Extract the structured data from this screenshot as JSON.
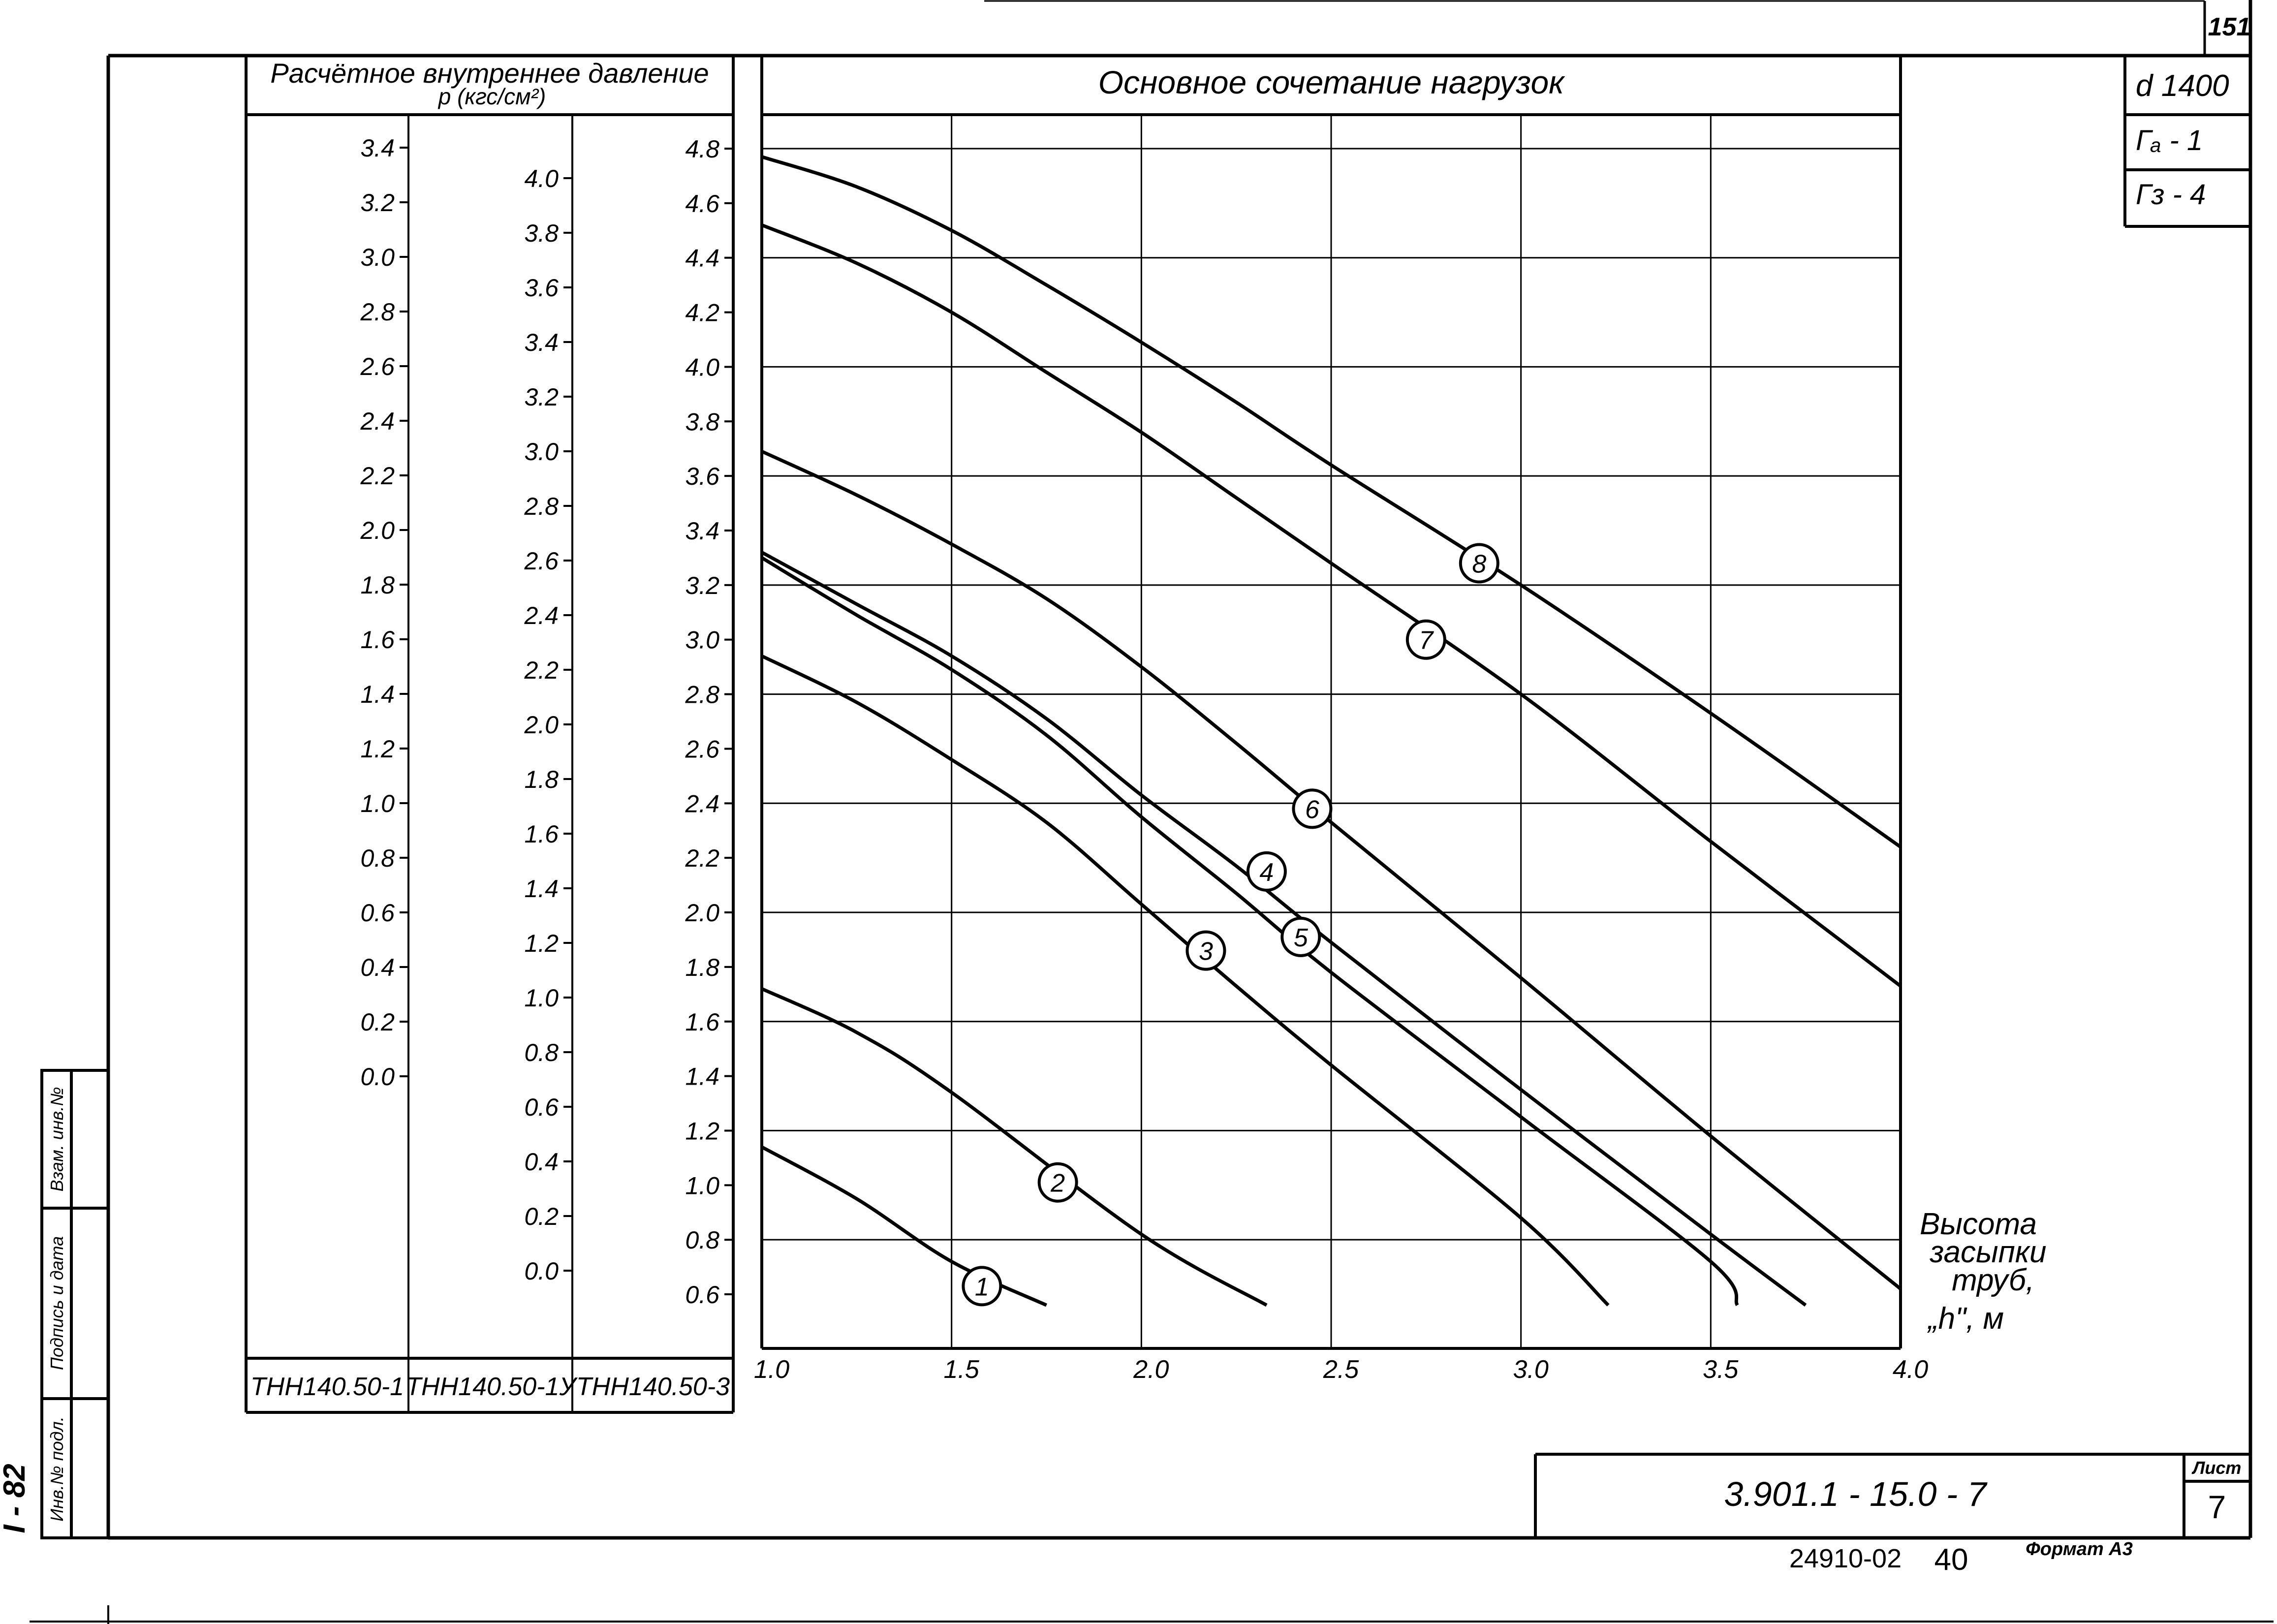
{
  "sheet": {
    "sheet_top_number": "151",
    "stamps": [
      "d 1400",
      "Гₐ - 1",
      "Гз - 4"
    ],
    "document_code": "3.901.1 - 15.0 - 7",
    "sheet_label": "Лист",
    "sheet_number": "7",
    "bottom_code": "24910-02",
    "bottom_number": "40",
    "format_label": "Формат А3",
    "left_margin_code": "I - 82",
    "side_stamp_labels": [
      "Инв.№ подл.",
      "Подпись и дата",
      "Взам. инв.№"
    ]
  },
  "pressure_scales": {
    "header_line1": "Расчётное внутреннее давление",
    "header_line2": "p (кгс/см²)",
    "columns": [
      {
        "name": "ТНН140.50-1",
        "ticks": [
          "3.4",
          "3.2",
          "3.0",
          "2.8",
          "2.6",
          "2.4",
          "2.2",
          "2.0",
          "1.8",
          "1.6",
          "1.4",
          "1.2",
          "1.0",
          "0.8",
          "0.6",
          "0.4",
          "0.2",
          "0.0"
        ]
      },
      {
        "name": "ТНН140.50-1У",
        "ticks": [
          "4.0",
          "3.8",
          "3.6",
          "3.4",
          "3.2",
          "3.0",
          "2.8",
          "2.6",
          "2.4",
          "2.2",
          "2.0",
          "1.8",
          "1.6",
          "1.4",
          "1.2",
          "1.0",
          "0.8",
          "0.6",
          "0.4",
          "0.2",
          "0.0"
        ]
      },
      {
        "name": "ТНН140.50-3",
        "ticks": [
          "4.8",
          "4.6",
          "4.4",
          "4.2",
          "4.0",
          "3.8",
          "3.6",
          "3.4",
          "3.2",
          "3.0",
          "2.8",
          "2.6",
          "2.4",
          "2.2",
          "2.0",
          "1.8",
          "1.6",
          "1.4",
          "1.2",
          "1.0",
          "0.8",
          "0.6"
        ]
      }
    ]
  },
  "chart_data": {
    "type": "line",
    "title": "Основное сочетание нагрузок",
    "xlabel_lines": [
      "Высота",
      "засыпки",
      "труб,",
      "„h\", м"
    ],
    "ylabel": "p (кгс/см²)",
    "x_ticks": [
      "1.0",
      "1.5",
      "2.0",
      "2.5",
      "3.0",
      "3.5",
      "4.0"
    ],
    "xlim": [
      1.0,
      4.0
    ],
    "ylim": [
      0.55,
      4.85
    ],
    "grid": true,
    "y_reference_scale": "ТНН140.50-3",
    "series": [
      {
        "name": "1",
        "label_at": [
          1.58,
          0.63
        ],
        "points": [
          [
            1.0,
            1.14
          ],
          [
            1.25,
            0.95
          ],
          [
            1.5,
            0.72
          ],
          [
            1.75,
            0.56
          ]
        ]
      },
      {
        "name": "2",
        "label_at": [
          1.78,
          1.01
        ],
        "points": [
          [
            1.0,
            1.72
          ],
          [
            1.25,
            1.56
          ],
          [
            1.5,
            1.34
          ],
          [
            2.0,
            0.82
          ],
          [
            2.33,
            0.56
          ]
        ]
      },
      {
        "name": "3",
        "label_at": [
          2.17,
          1.86
        ],
        "points": [
          [
            1.0,
            2.94
          ],
          [
            1.25,
            2.77
          ],
          [
            1.5,
            2.56
          ],
          [
            1.75,
            2.33
          ],
          [
            2.0,
            2.03
          ],
          [
            2.25,
            1.73
          ],
          [
            2.5,
            1.44
          ],
          [
            3.0,
            0.88
          ],
          [
            3.23,
            0.56
          ]
        ]
      },
      {
        "name": "4",
        "label_at": [
          2.33,
          2.15
        ],
        "points": [
          [
            1.0,
            3.32
          ],
          [
            1.25,
            3.13
          ],
          [
            1.5,
            2.94
          ],
          [
            1.75,
            2.71
          ],
          [
            2.0,
            2.43
          ],
          [
            2.25,
            2.17
          ],
          [
            2.5,
            1.89
          ],
          [
            3.0,
            1.35
          ],
          [
            3.5,
            0.82
          ],
          [
            3.75,
            0.56
          ]
        ]
      },
      {
        "name": "5",
        "label_at": [
          2.42,
          1.91
        ],
        "points": [
          [
            1.0,
            3.3
          ],
          [
            1.25,
            3.09
          ],
          [
            1.5,
            2.89
          ],
          [
            1.75,
            2.65
          ],
          [
            2.0,
            2.35
          ],
          [
            2.25,
            2.07
          ],
          [
            2.5,
            1.78
          ],
          [
            3.0,
            1.25
          ],
          [
            3.5,
            0.72
          ],
          [
            3.57,
            0.56
          ]
        ]
      },
      {
        "name": "6",
        "label_at": [
          2.45,
          2.38
        ],
        "points": [
          [
            1.0,
            3.69
          ],
          [
            1.25,
            3.53
          ],
          [
            1.5,
            3.35
          ],
          [
            1.75,
            3.15
          ],
          [
            2.0,
            2.9
          ],
          [
            2.25,
            2.62
          ],
          [
            2.5,
            2.33
          ],
          [
            3.0,
            1.76
          ],
          [
            3.5,
            1.18
          ],
          [
            4.0,
            0.62
          ]
        ]
      },
      {
        "name": "7",
        "label_at": [
          2.75,
          3.0
        ],
        "points": [
          [
            1.0,
            4.52
          ],
          [
            1.25,
            4.38
          ],
          [
            1.5,
            4.2
          ],
          [
            1.75,
            3.98
          ],
          [
            2.0,
            3.76
          ],
          [
            2.25,
            3.52
          ],
          [
            2.5,
            3.28
          ],
          [
            3.0,
            2.8
          ],
          [
            3.5,
            2.26
          ],
          [
            4.0,
            1.73
          ]
        ]
      },
      {
        "name": "8",
        "label_at": [
          2.89,
          3.28
        ],
        "points": [
          [
            1.0,
            4.77
          ],
          [
            1.25,
            4.66
          ],
          [
            1.5,
            4.5
          ],
          [
            1.75,
            4.3
          ],
          [
            2.0,
            4.09
          ],
          [
            2.25,
            3.87
          ],
          [
            2.5,
            3.64
          ],
          [
            3.0,
            3.2
          ],
          [
            3.5,
            2.73
          ],
          [
            4.0,
            2.24
          ]
        ]
      }
    ]
  }
}
